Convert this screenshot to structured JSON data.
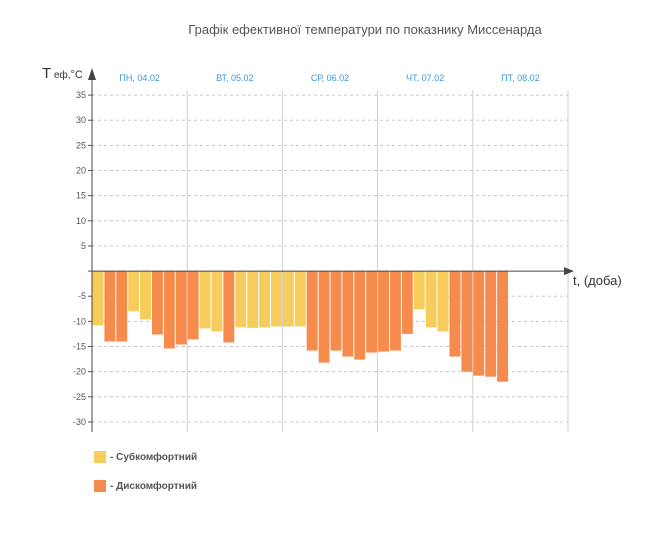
{
  "chart_data": {
    "type": "bar",
    "title": "Графік ефективної температури по показнику Миссенарда",
    "ylabel_main": "T",
    "ylabel_sub": "еф,",
    "ylabel_unit": "°C",
    "xlabel": "t, (доба)",
    "ylim": [
      -32,
      38
    ],
    "yticks": [
      35,
      30,
      25,
      20,
      15,
      10,
      5,
      0,
      -5,
      -10,
      -15,
      -20,
      -25,
      -30
    ],
    "ytick_labels": [
      "35",
      "30",
      "25",
      "20",
      "15",
      "10",
      "5",
      "",
      "-5",
      "-10",
      "-15",
      "-20",
      "-25",
      "-30"
    ],
    "days": [
      "ПН, 04.02",
      "ВТ, 05.02",
      "СР, 06.02",
      "ЧТ, 07.02",
      "ПТ, 08.02"
    ],
    "bars_per_day": 8,
    "grid": true,
    "series": [
      {
        "name": "- Субкомфортний",
        "color": "#f6cd5c"
      },
      {
        "name": "- Дискомфортний",
        "color": "#f58b4c"
      }
    ],
    "values": [
      -10.8,
      -14,
      -14,
      -8,
      -9.6,
      -12.6,
      -15.4,
      -14.6,
      -13.6,
      -11.4,
      -12,
      -14.2,
      -11.2,
      -11.3,
      -11.2,
      -11,
      -11,
      -11,
      -15.8,
      -18.2,
      -15.8,
      -17,
      -17.6,
      -16.2,
      -16,
      -15.8,
      -12.5,
      -7.6,
      -11.2,
      -12,
      -17,
      -20,
      -20.8,
      -21,
      -22
    ],
    "classes": [
      0,
      1,
      1,
      0,
      0,
      1,
      1,
      1,
      1,
      0,
      0,
      1,
      0,
      0,
      0,
      0,
      0,
      0,
      1,
      1,
      1,
      1,
      1,
      1,
      1,
      1,
      1,
      0,
      0,
      0,
      1,
      1,
      1,
      1,
      1
    ]
  }
}
